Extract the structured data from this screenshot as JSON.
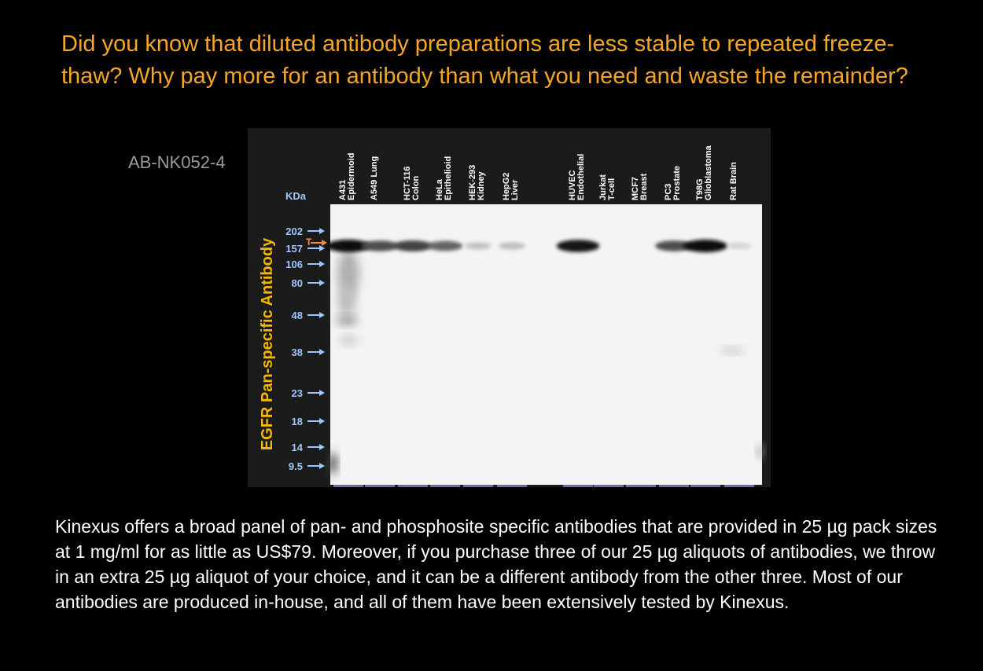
{
  "headline": "Did you know that diluted antibody preparations are less stable to repeated freeze-thaw? Why pay more for an antibody than what you need and waste the remainder?",
  "product_code": "AB-NK052-4",
  "blot": {
    "antibody_label": "EGFR Pan-specific Antibody",
    "kda_label": "KDa",
    "target_marker": "T",
    "markers": [
      "202",
      "157",
      "106",
      "80",
      "48",
      "38",
      "23",
      "18",
      "14",
      "9.5"
    ],
    "lanes": [
      {
        "name": "A431",
        "sub": "Epidermoid",
        "band": 1.0
      },
      {
        "name": "A549 Lung",
        "sub": "",
        "band": 0.7
      },
      {
        "name": "HCT-116",
        "sub": "Colon",
        "band": 0.75
      },
      {
        "name": "HeLa",
        "sub": "Epithelioid",
        "band": 0.6
      },
      {
        "name": "HEK-293",
        "sub": "Kidney",
        "band": 0.18
      },
      {
        "name": "HepG2",
        "sub": "Liver",
        "band": 0.2
      },
      {
        "name": "HUVEC",
        "sub": "Endothelial",
        "band": 0.95
      },
      {
        "name": "Jurkat",
        "sub": "T-cell",
        "band": 0.0
      },
      {
        "name": "MCF7",
        "sub": "Breast",
        "band": 0.0
      },
      {
        "name": "PC3",
        "sub": "Prostate",
        "band": 0.7
      },
      {
        "name": "T98G",
        "sub": "Glioblastoma",
        "band": 1.0
      },
      {
        "name": "Rat Brain",
        "sub": "",
        "band": 0.1
      }
    ],
    "colors": {
      "kda": "#9ec6ff",
      "label": "#f5b800",
      "target": "#ff8a3d",
      "lane_text": "#ffffff"
    }
  },
  "body_text": "Kinexus offers a broad panel of pan- and phosphosite specific antibodies that are provided in 25 µg pack sizes at 1 mg/ml for as little as US$79. Moreover, if you purchase three of our 25 µg aliquots of antibodies, we throw in an extra 25 µg aliquot of your choice, and it can be a different antibody from the other three. Most of our antibodies are produced in-house, and all of them have been extensively tested by Kinexus."
}
